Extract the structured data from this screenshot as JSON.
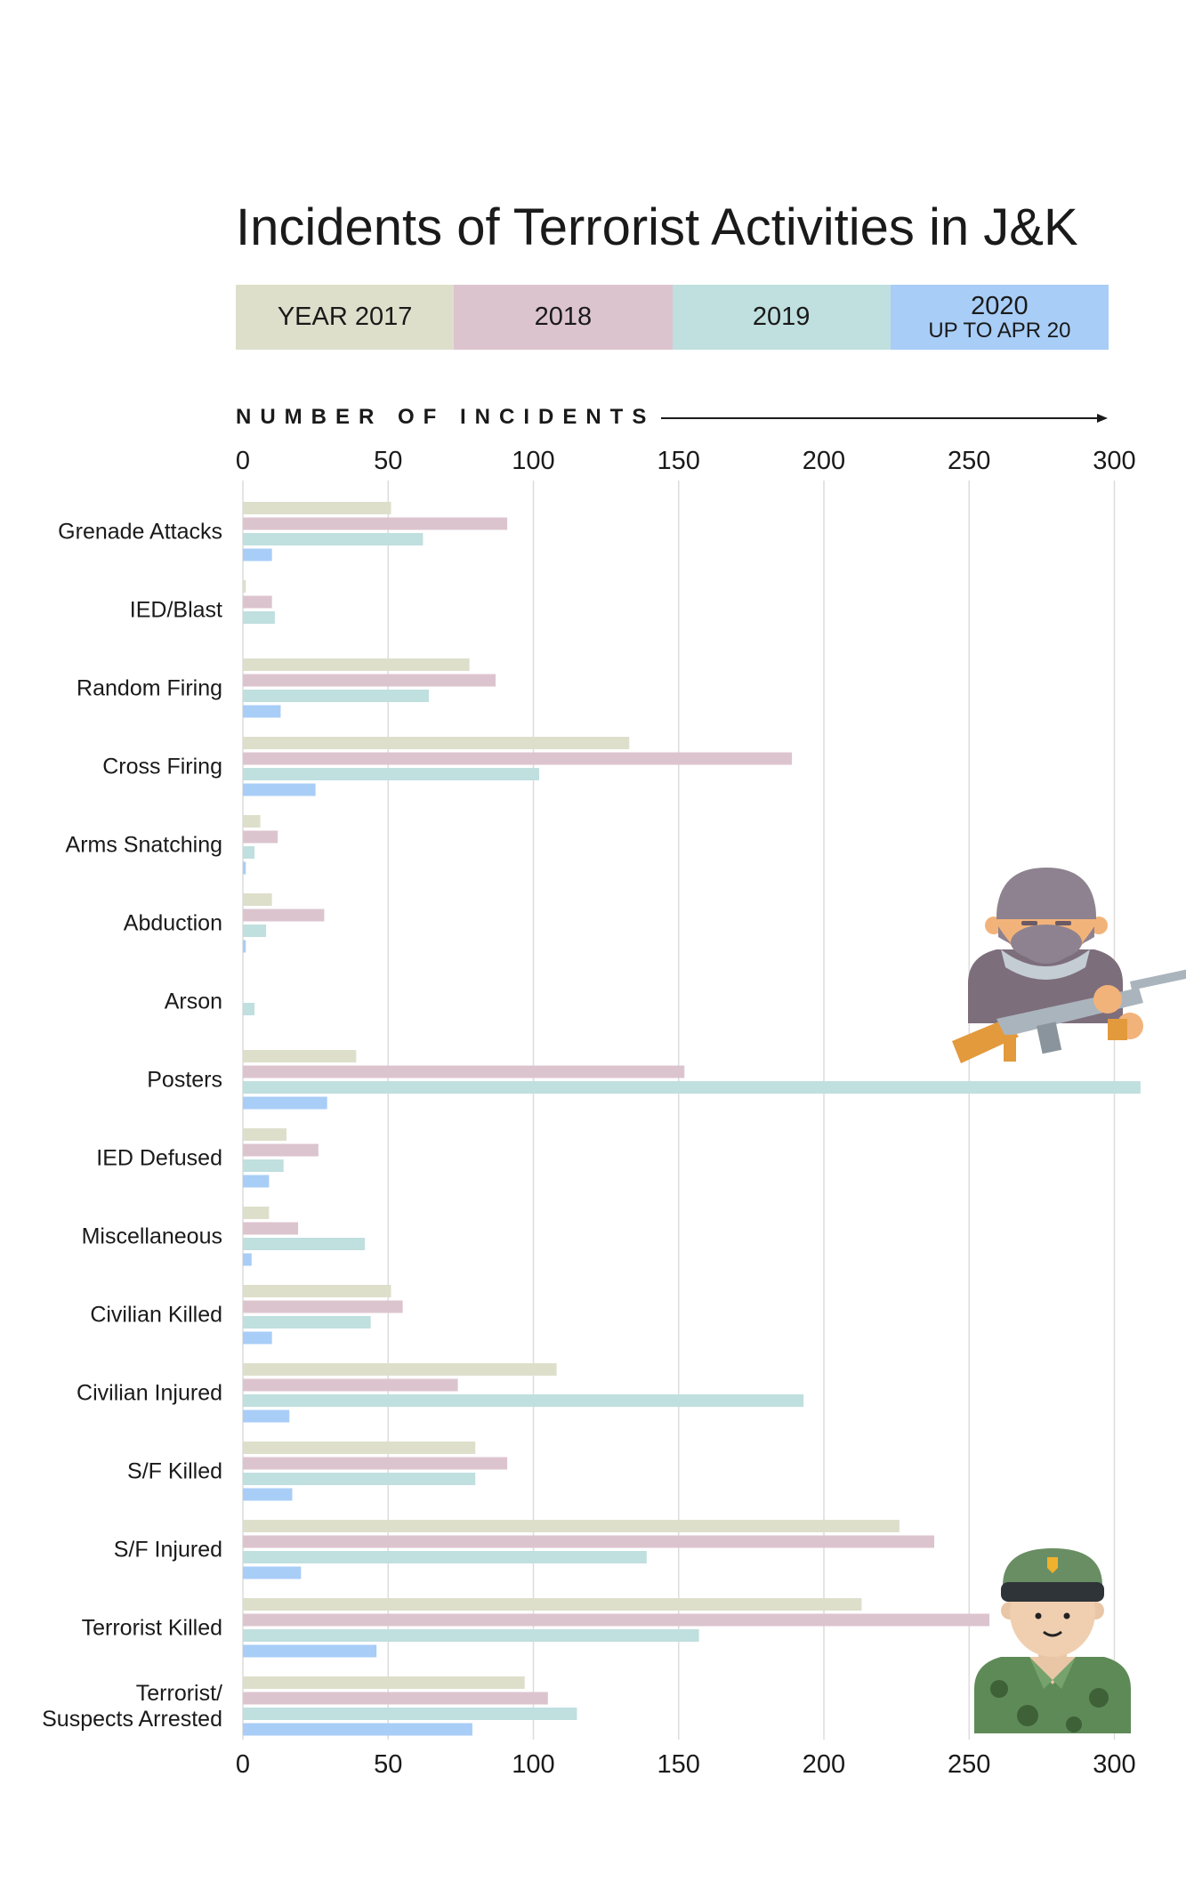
{
  "colors": {
    "y2017": "#dedfcb",
    "y2018": "#dcc4cf",
    "y2019": "#c0dfdf",
    "y2020": "#a8cdf7",
    "grid": "#dcdcdc",
    "text": "#1a1a1a"
  },
  "legend": [
    {
      "label": "YEAR 2017",
      "sublabel": "",
      "color": "#dedfcb"
    },
    {
      "label": "2018",
      "sublabel": "",
      "color": "#dcc4cf"
    },
    {
      "label": "2019",
      "sublabel": "",
      "color": "#c0dfdf"
    },
    {
      "label": "2020",
      "sublabel": "UP TO APR 20",
      "color": "#a8cdf7"
    }
  ],
  "axis_heading": "NUMBER OF INCIDENTS",
  "illustrations": [
    "masked-terrorist-with-rifle-icon",
    "army-soldier-icon"
  ],
  "chart_data": {
    "type": "bar",
    "orientation": "horizontal",
    "title": "Incidents of Terrorist Activities in J&K",
    "xlabel": "NUMBER OF INCIDENTS",
    "ylabel": "",
    "xlim": [
      0,
      300
    ],
    "xticks": [
      0,
      50,
      100,
      150,
      200,
      250,
      300
    ],
    "grid": true,
    "legend_position": "top",
    "categories": [
      [
        "Grenade Attacks"
      ],
      [
        "IED/Blast"
      ],
      [
        "Random Firing"
      ],
      [
        "Cross Firing"
      ],
      [
        "Arms Snatching"
      ],
      [
        "Abduction"
      ],
      [
        "Arson"
      ],
      [
        "Posters"
      ],
      [
        "IED Defused"
      ],
      [
        "Miscellaneous"
      ],
      [
        "Civilian Killed"
      ],
      [
        "Civilian Injured"
      ],
      [
        "S/F Killed"
      ],
      [
        "S/F Injured"
      ],
      [
        "Terrorist Killed"
      ],
      [
        "Terrorist/",
        "Suspects Arrested"
      ]
    ],
    "series": [
      {
        "name": "YEAR 2017",
        "values": [
          51,
          1,
          78,
          133,
          6,
          10,
          0,
          39,
          15,
          9,
          51,
          108,
          80,
          226,
          213,
          97
        ]
      },
      {
        "name": "2018",
        "values": [
          91,
          10,
          87,
          189,
          12,
          28,
          0,
          152,
          26,
          19,
          55,
          74,
          91,
          238,
          257,
          105
        ]
      },
      {
        "name": "2019",
        "values": [
          62,
          11,
          64,
          102,
          4,
          8,
          4,
          309,
          14,
          42,
          44,
          193,
          80,
          139,
          157,
          115
        ]
      },
      {
        "name": "2020",
        "values": [
          10,
          0,
          13,
          25,
          1,
          1,
          0,
          29,
          9,
          3,
          10,
          16,
          17,
          20,
          46,
          79
        ]
      }
    ]
  }
}
